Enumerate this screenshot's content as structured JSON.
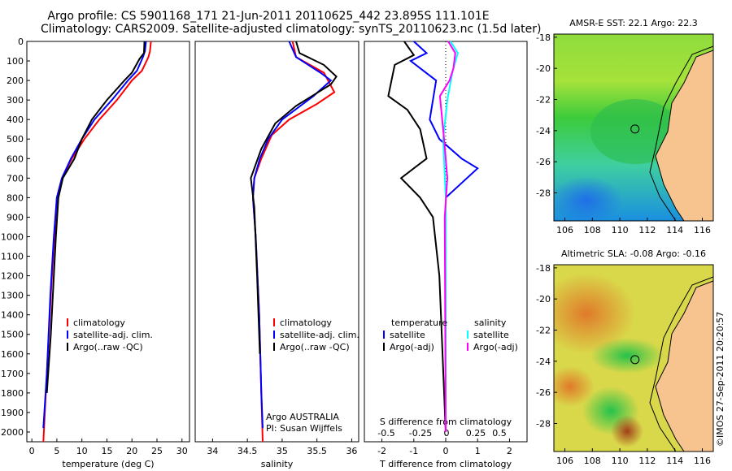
{
  "titles": {
    "line1": "Argo profile: CS 5901168_171 21-Jun-2011 20110625_442 23.895S 111.101E",
    "line2": "Climatology: CARS2009. Satellite-adjusted climatology: synTS_20110623.nc (1.5d later)"
  },
  "side_stamp": "©IMOS 27-Sep-2011 20:20:57",
  "colors": {
    "clim": "#ff0000",
    "sat": "#0000ff",
    "argo": "#000000",
    "sat_s": "#00ffff",
    "argo_s": "#ff00ff",
    "land": "#f7c48f"
  },
  "chart_data": [
    {
      "type": "line",
      "id": "temperature",
      "xlabel": "temperature (deg C)",
      "xlim": [
        -1,
        31.5
      ],
      "xticks": [
        "0",
        "5",
        "10",
        "15",
        "20",
        "25",
        "30"
      ],
      "ylim": [
        0,
        2050
      ],
      "yticks": [
        "0",
        "100",
        "200",
        "300",
        "400",
        "500",
        "600",
        "700",
        "800",
        "900",
        "1000",
        "1100",
        "1200",
        "1300",
        "1400",
        "1500",
        "1600",
        "1700",
        "1800",
        "1900",
        "2000"
      ],
      "legend": [
        "climatology",
        "satellite-adj. clim.",
        "Argo(..raw -QC)"
      ],
      "series": [
        {
          "name": "climatology",
          "color": "clim",
          "x": [
            23.8,
            23.6,
            23.3,
            22.0,
            20.0,
            17.0,
            13.5,
            10.5,
            8.0,
            6.0,
            5.0,
            4.5,
            3.8,
            3.0,
            2.3
          ],
          "y": [
            0,
            50,
            80,
            150,
            200,
            300,
            400,
            500,
            600,
            700,
            800,
            1000,
            1300,
            1700,
            2050
          ]
        },
        {
          "name": "satellite-adj. clim.",
          "color": "sat",
          "x": [
            22.8,
            22.6,
            22.2,
            21.0,
            19.2,
            16.0,
            12.5,
            10.0,
            7.8,
            6.0,
            5.0,
            4.4,
            3.7,
            3.0,
            2.3
          ],
          "y": [
            0,
            50,
            80,
            150,
            200,
            300,
            400,
            500,
            600,
            700,
            800,
            1000,
            1300,
            1700,
            1980
          ]
        },
        {
          "name": "Argo(..raw -QC)",
          "color": "argo",
          "x": [
            22.5,
            22.4,
            21.5,
            20.0,
            18.5,
            15.0,
            12.0,
            10.0,
            8.5,
            6.2,
            5.3,
            4.8,
            4.4,
            3.8,
            3.0
          ],
          "y": [
            0,
            60,
            90,
            160,
            200,
            300,
            400,
            500,
            600,
            700,
            800,
            1000,
            1200,
            1500,
            1800
          ]
        }
      ]
    },
    {
      "type": "line",
      "id": "salinity",
      "xlabel": "salinity",
      "xlim": [
        33.75,
        36.1
      ],
      "xticks": [
        "34",
        "34.5",
        "35",
        "35.5",
        "36"
      ],
      "ylim": [
        0,
        2050
      ],
      "legend": [
        "climatology",
        "satellite-adj. clim.",
        "Argo(..raw -QC)"
      ],
      "annotation": [
        "Argo AUSTRALIA",
        "PI: Susan Wijffels"
      ],
      "series": [
        {
          "name": "climatology",
          "color": "clim",
          "x": [
            35.15,
            35.2,
            35.6,
            35.75,
            35.5,
            35.1,
            34.85,
            34.7,
            34.6,
            34.58,
            34.62,
            34.67,
            34.7,
            34.72
          ],
          "y": [
            0,
            80,
            160,
            260,
            320,
            400,
            480,
            600,
            700,
            800,
            1000,
            1400,
            1800,
            2050
          ]
        },
        {
          "name": "satellite-adj. clim.",
          "color": "sat",
          "x": [
            35.1,
            35.2,
            35.55,
            35.7,
            35.45,
            35.0,
            34.8,
            34.68,
            34.6,
            34.58,
            34.62,
            34.67,
            34.7,
            34.72
          ],
          "y": [
            0,
            80,
            160,
            200,
            280,
            400,
            500,
            600,
            700,
            800,
            1000,
            1400,
            1800,
            1980
          ]
        },
        {
          "name": "Argo(..raw -QC)",
          "color": "argo",
          "x": [
            35.2,
            35.25,
            35.6,
            35.78,
            35.7,
            35.2,
            34.9,
            34.7,
            34.55,
            34.6,
            34.64,
            34.68
          ],
          "y": [
            0,
            60,
            120,
            180,
            220,
            330,
            420,
            550,
            700,
            850,
            1200,
            1600
          ]
        }
      ]
    },
    {
      "type": "line",
      "id": "difference",
      "xlabel_top": "S difference from climatology",
      "xticks_top": [
        "-0.5",
        "-0.25",
        "0",
        "0.25",
        "0.5"
      ],
      "xlabel": "T difference from climatology",
      "xticks": [
        "-2",
        "-1",
        "0",
        "1",
        "2"
      ],
      "xlim": [
        -2.55,
        2.55
      ],
      "ylim": [
        0,
        2050
      ],
      "legend_titles": [
        "temperature",
        "salinity"
      ],
      "legend": [
        "satellite",
        "Argo(-adj)",
        "satellite",
        "Argo(-adj)"
      ],
      "series": [
        {
          "name": "temperature satellite",
          "color": "sat",
          "x": [
            -1.0,
            -0.6,
            -1.1,
            -0.7,
            -0.3,
            -0.5,
            -0.2,
            0.5,
            1.0,
            0.0,
            0.0,
            0.0
          ],
          "y": [
            0,
            60,
            100,
            150,
            200,
            400,
            500,
            600,
            650,
            800,
            1200,
            2000
          ]
        },
        {
          "name": "temperature Argo(-adj)",
          "color": "argo",
          "x": [
            -1.3,
            -1.0,
            -1.6,
            -1.8,
            -1.2,
            -0.8,
            -0.6,
            -1.4,
            -0.8,
            -0.4,
            -0.2,
            -0.1,
            0.0
          ],
          "y": [
            0,
            70,
            120,
            280,
            350,
            450,
            600,
            700,
            800,
            900,
            1200,
            1600,
            2000
          ]
        },
        {
          "name": "salinity satellite",
          "color": "sat_s",
          "x": [
            0.15,
            0.38,
            0.22,
            0.05,
            -0.08,
            0.0,
            0.0,
            0.0
          ],
          "y": [
            0,
            60,
            150,
            300,
            500,
            800,
            1200,
            2000
          ]
        },
        {
          "name": "salinity Argo(-adj)",
          "color": "argo_s",
          "x": [
            0.08,
            0.3,
            0.24,
            0.12,
            -0.18,
            -0.05,
            0.05,
            -0.03,
            0.0
          ],
          "y": [
            0,
            60,
            140,
            200,
            280,
            500,
            700,
            900,
            2000
          ]
        }
      ]
    },
    {
      "type": "heatmap",
      "id": "sst-map",
      "title": "AMSR-E SST: 22.1 Argo: 22.3",
      "xticks": [
        "106",
        "108",
        "110",
        "112",
        "114",
        "116"
      ],
      "yticks": [
        "-18",
        "-20",
        "-22",
        "-24",
        "-26",
        "-28"
      ],
      "xlim": [
        105.2,
        116.8
      ],
      "ylim": [
        -29.8,
        -17.8
      ],
      "marker": {
        "lon": 111.101,
        "lat": -23.895
      }
    },
    {
      "type": "heatmap",
      "id": "sla-map",
      "title": "Altimetric SLA: -0.08 Argo: -0.16",
      "xticks": [
        "106",
        "108",
        "110",
        "112",
        "114",
        "116"
      ],
      "yticks": [
        "-18",
        "-20",
        "-22",
        "-24",
        "-26",
        "-28"
      ],
      "xlim": [
        105.2,
        116.8
      ],
      "ylim": [
        -29.8,
        -17.8
      ],
      "marker": {
        "lon": 111.101,
        "lat": -23.895
      }
    }
  ]
}
